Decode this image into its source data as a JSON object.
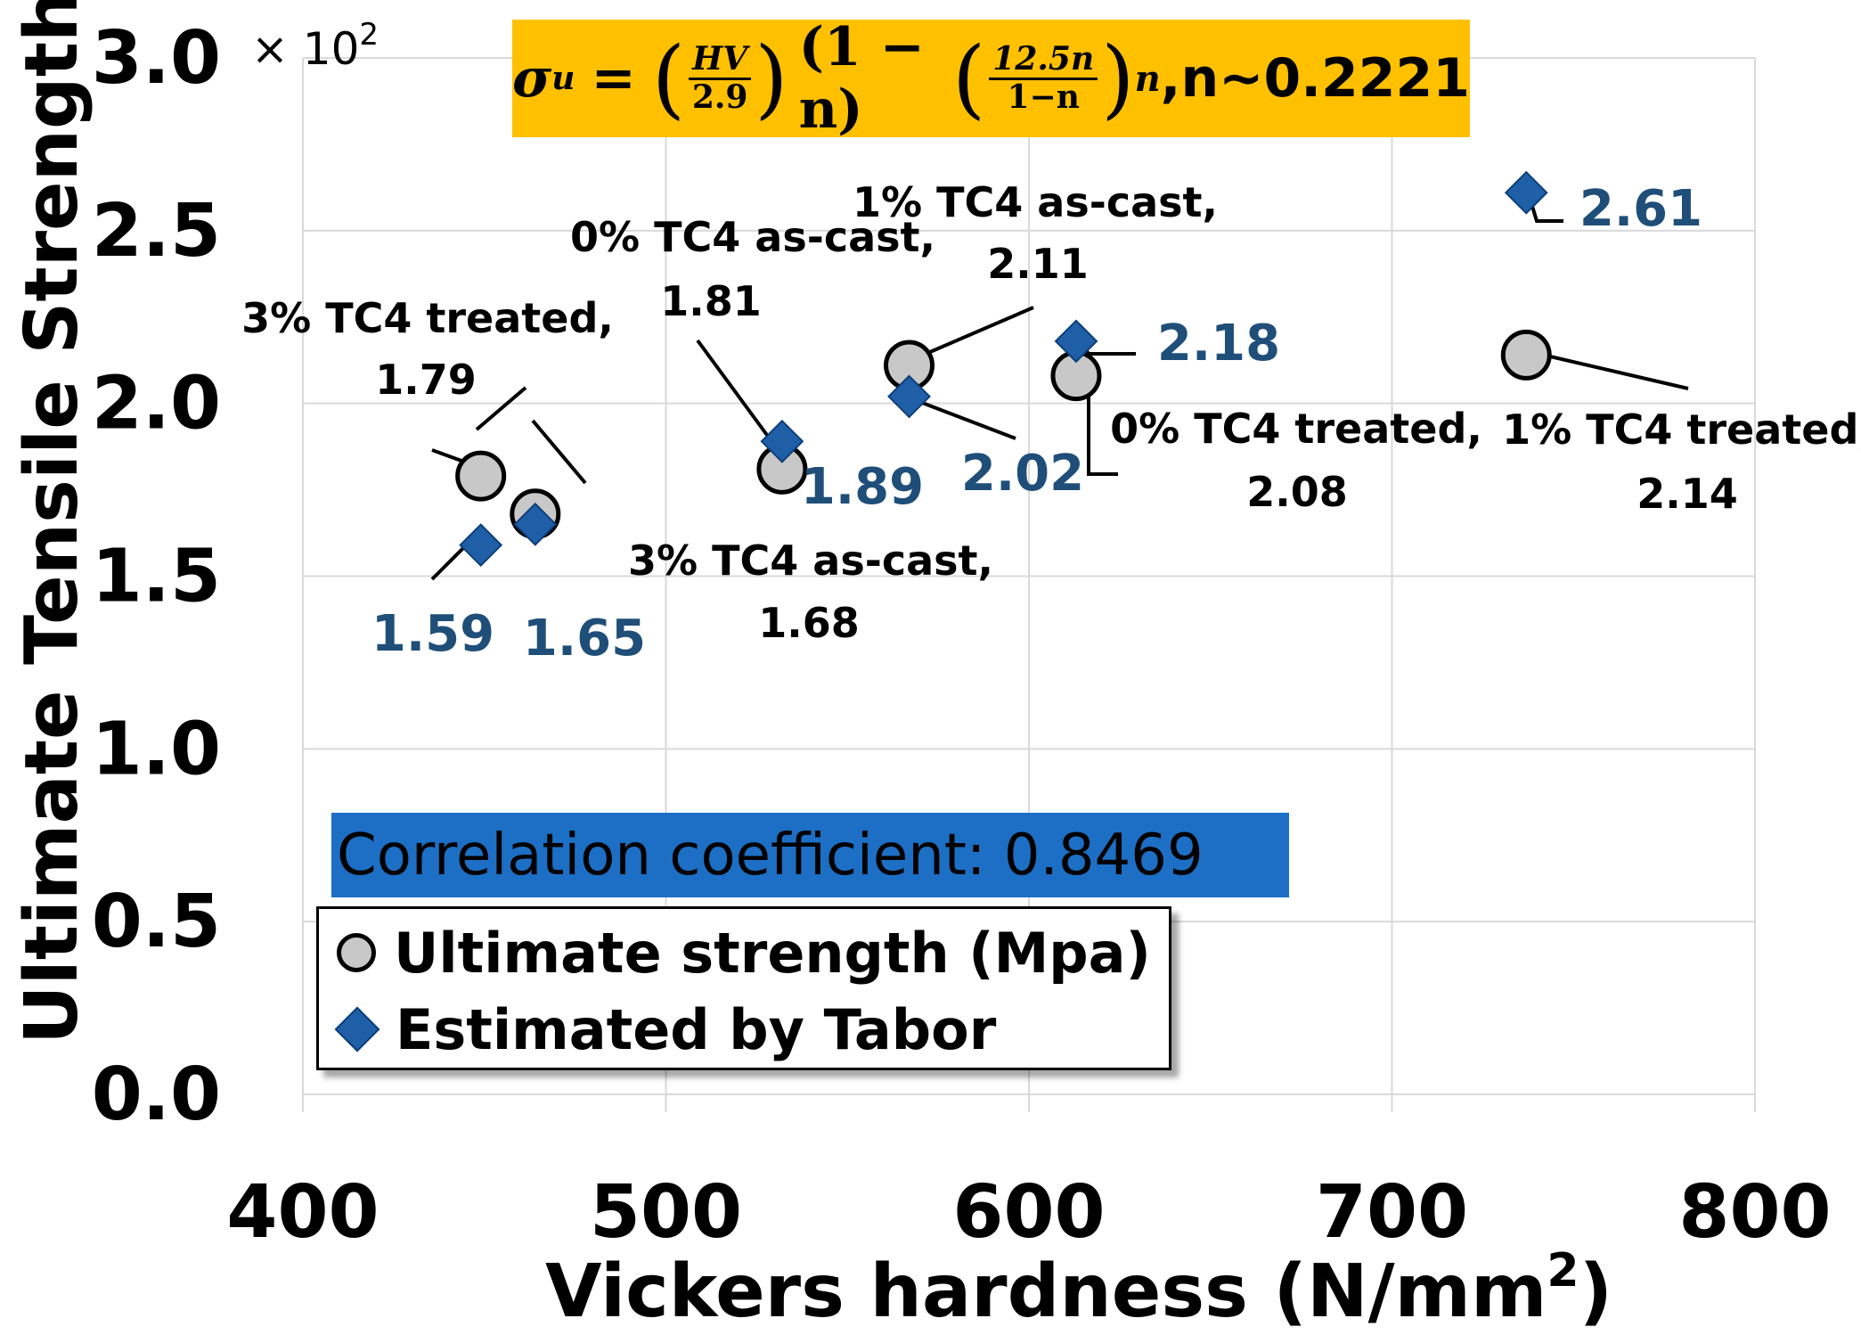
{
  "chart_data": {
    "type": "scatter",
    "xlabel": "Vickers hardness (N/mm",
    "xlabel_sup": "2",
    "xlabel_end": ")",
    "ylabel": "Ultimate Tensile Strength  (MPa)",
    "y_multiplier": "× 10",
    "y_multiplier_exp": "2",
    "xlim": [
      400,
      800
    ],
    "ylim": [
      0,
      3.0
    ],
    "x_ticks": [
      "400",
      "500",
      "600",
      "700",
      "800"
    ],
    "y_ticks": [
      "0.0",
      "0.5",
      "1.0",
      "1.5",
      "2.0",
      "2.5",
      "3.0"
    ],
    "grid": true,
    "series": [
      {
        "name": "Ultimate strength (Mpa)",
        "marker": "circle",
        "color": "#c8c8c8",
        "points": [
          {
            "x": 449,
            "y": 1.79,
            "label": "3% TC4 treated,",
            "value": "1.79"
          },
          {
            "x": 464,
            "y": 1.68,
            "label": "3% TC4 as-cast,",
            "value": "1.68"
          },
          {
            "x": 532,
            "y": 1.81,
            "label": "0% TC4 as-cast,",
            "value": "1.81"
          },
          {
            "x": 567,
            "y": 2.11,
            "label": "1% TC4 as-cast,",
            "value": "2.11"
          },
          {
            "x": 613,
            "y": 2.08,
            "label": "0% TC4 treated,",
            "value": "2.08"
          },
          {
            "x": 737,
            "y": 2.14,
            "label": "1% TC4 treated,",
            "value": "2.14"
          }
        ]
      },
      {
        "name": "Estimated by Tabor",
        "marker": "diamond",
        "color": "#1f5fa8",
        "points": [
          {
            "x": 449,
            "y": 1.59,
            "value": "1.59"
          },
          {
            "x": 464,
            "y": 1.65,
            "value": "1.65"
          },
          {
            "x": 532,
            "y": 1.89,
            "value": "1.89"
          },
          {
            "x": 567,
            "y": 2.02,
            "value": "2.02"
          },
          {
            "x": 613,
            "y": 2.18,
            "value": "2.18"
          },
          {
            "x": 737,
            "y": 2.61,
            "value": "2.61"
          }
        ]
      }
    ],
    "annotations": {
      "correlation": "Correlation coefficient: 0.8469",
      "formula": {
        "lhs": "σ",
        "lhs_sub": "u",
        "eq": "=",
        "f1_num": "HV",
        "f1_den": "2.9",
        "mid": "(1 − n)",
        "f2_num": "12.5n",
        "f2_den": "1−n",
        "exp": "n",
        "tail": ",n~0.2221"
      }
    },
    "legend_position": "lower-left"
  },
  "colors": {
    "formula_bg": "#ffc000",
    "corr_bg": "#1c6fc4",
    "blue_label": "#1f4e79"
  }
}
